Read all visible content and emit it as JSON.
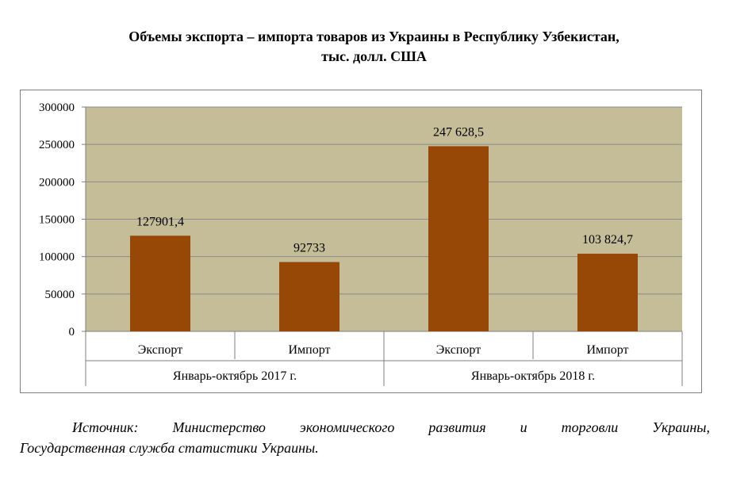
{
  "chart_data": {
    "type": "bar",
    "title": "Объемы экспорта – импорта товаров из Украины в Республику Узбекистан,",
    "subtitle": "тыс. долл. США",
    "categories": [
      "Экспорт",
      "Импорт",
      "Экспорт",
      "Импорт"
    ],
    "groups": [
      "Январь-октябрь 2017 г.",
      "Январь-октябрь 2018 г."
    ],
    "values": [
      127901.4,
      92733,
      247628.5,
      103824.7
    ],
    "data_labels": [
      "127901,4",
      "92733",
      "247 628,5",
      "103 824,7"
    ],
    "ylim": [
      0,
      300000
    ],
    "yticks": [
      "0",
      "50000",
      "100000",
      "150000",
      "200000",
      "250000",
      "300000"
    ],
    "grid": true,
    "legend": "none",
    "colors": {
      "bar": "#984806",
      "plot_bg": "#c4bd97",
      "grid": "#8c8c8c"
    }
  },
  "source": {
    "line1": "Источник: Министерство экономического развития и торговли Украины,",
    "line2": "Государственная служба статистики Украины."
  }
}
